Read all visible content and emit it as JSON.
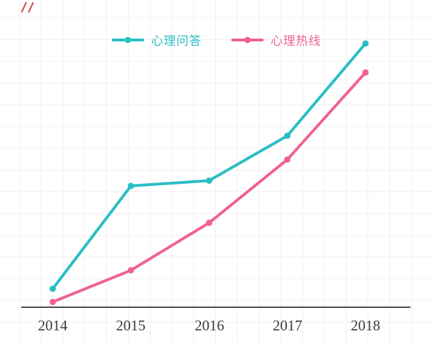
{
  "chart_data": {
    "type": "line",
    "categories": [
      "2014",
      "2015",
      "2016",
      "2017",
      "2018"
    ],
    "series": [
      {
        "name": "心理问答",
        "key": "qa",
        "color": "#29bec5",
        "values": [
          7,
          46,
          48,
          65,
          100
        ]
      },
      {
        "name": "心理热线",
        "key": "hotline",
        "color": "#f0618f",
        "values": [
          2,
          14,
          32,
          56,
          89
        ]
      }
    ],
    "title": "",
    "xlabel": "",
    "ylabel": "",
    "ylim": [
      0,
      105
    ],
    "grid": "faint background squares",
    "legend_position": "top-center",
    "axis_color": "#4a4a4a",
    "note": "y-axis has no visible scale; values estimated on a 0-100 relative scale"
  }
}
